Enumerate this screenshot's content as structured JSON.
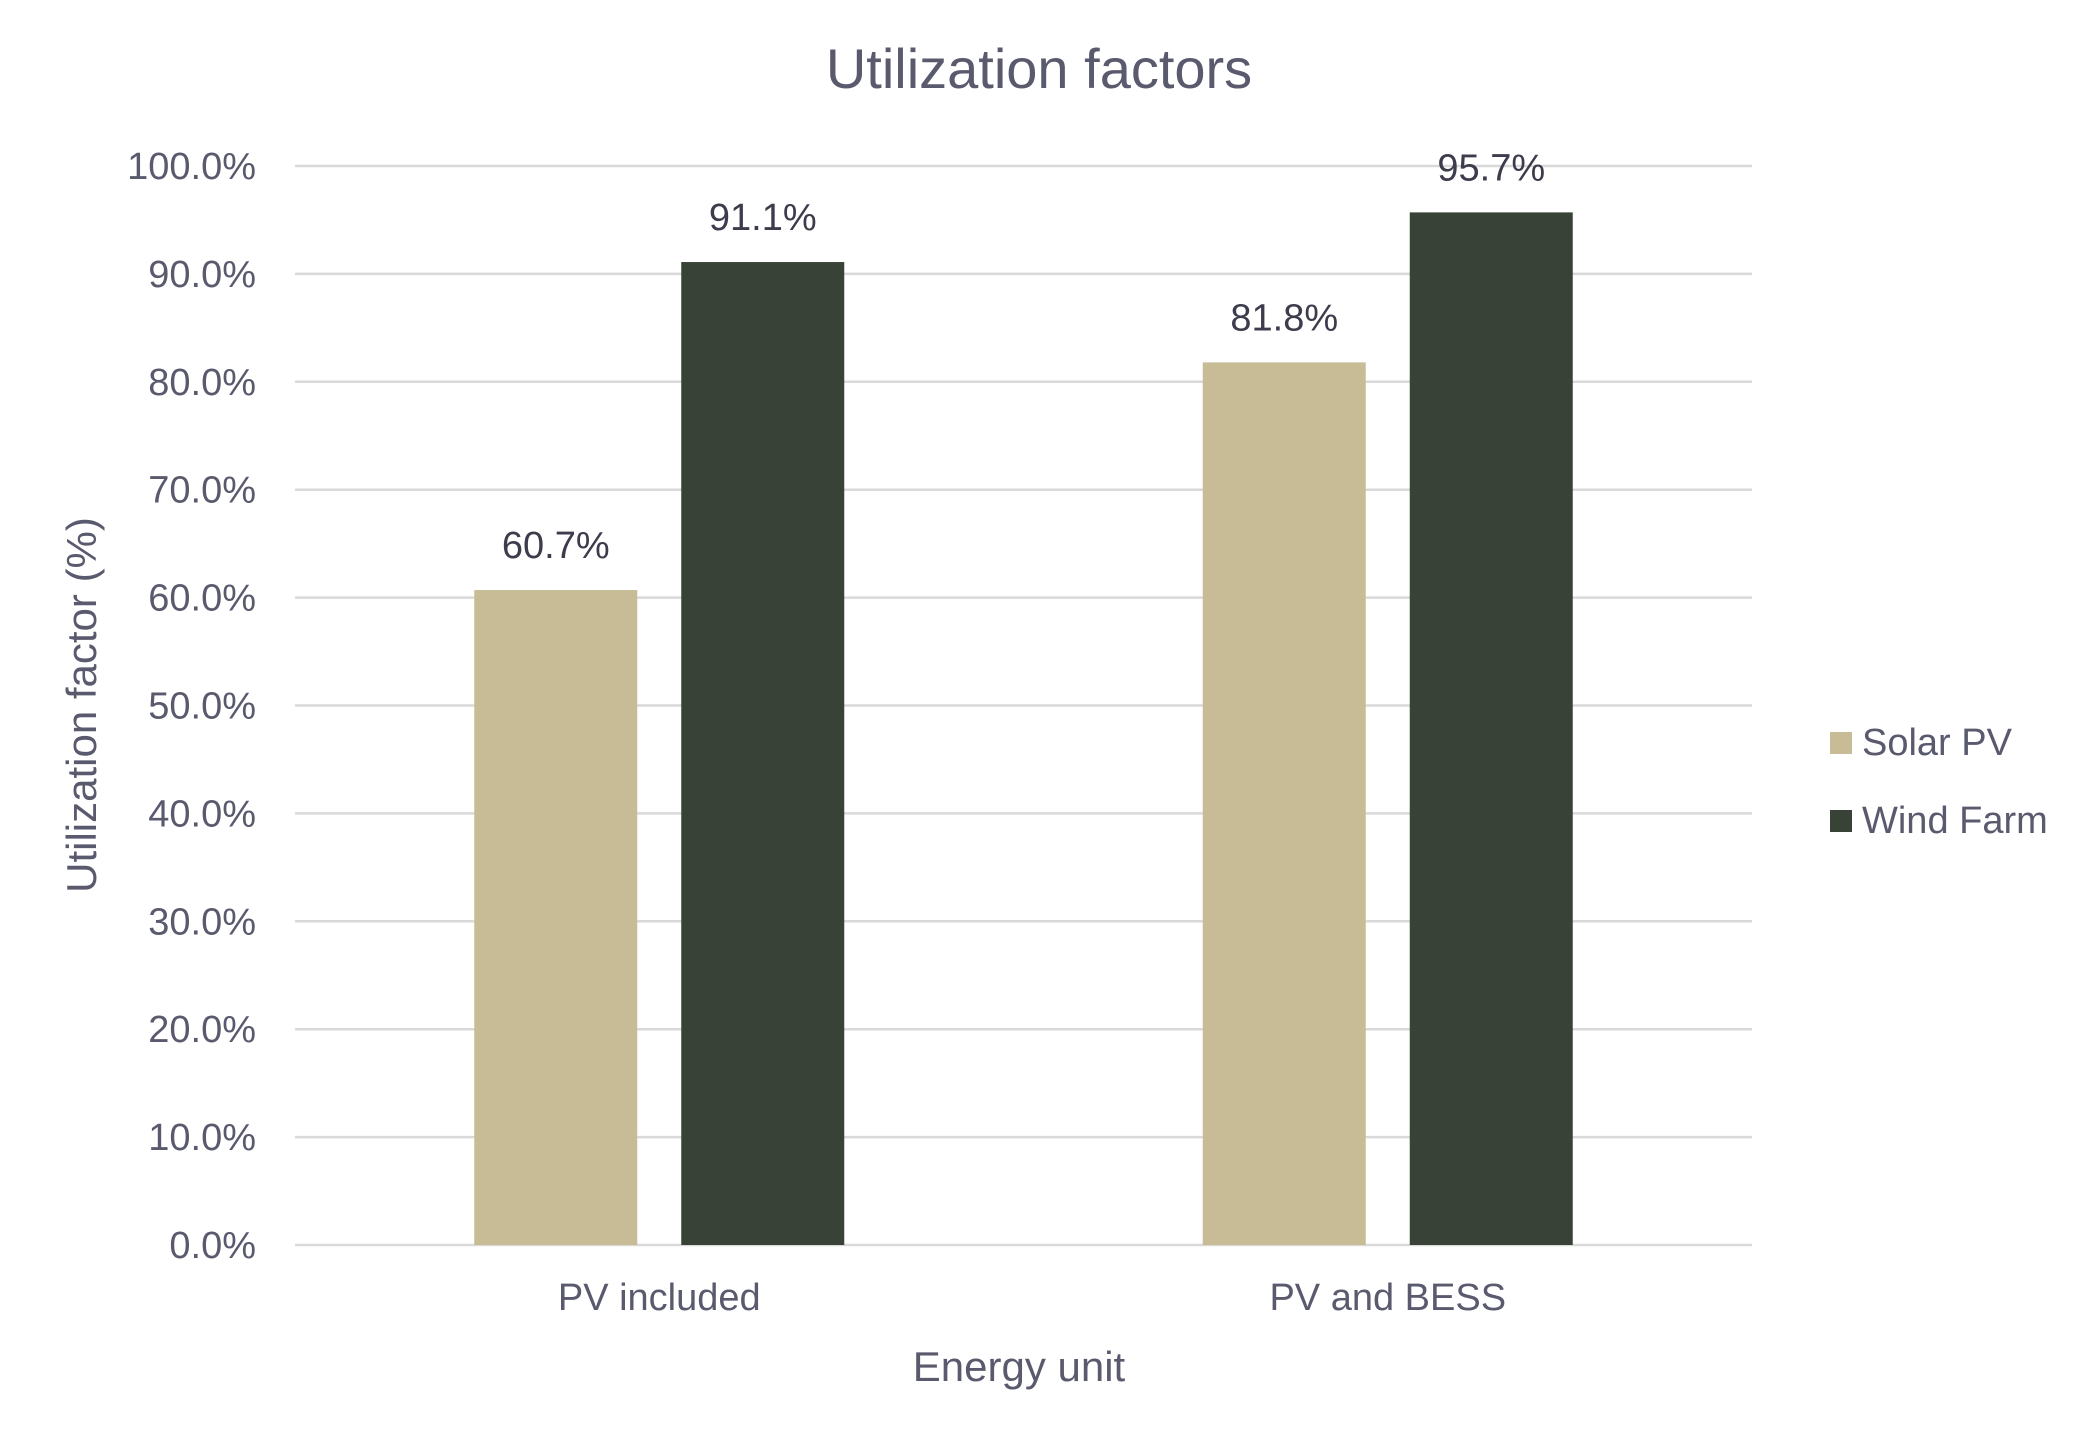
{
  "chart_data": {
    "type": "bar",
    "title": "Utilization factors",
    "xlabel": "Energy unit",
    "ylabel": "Utilization factor (%)",
    "categories": [
      "PV included",
      "PV and BESS"
    ],
    "series": [
      {
        "name": "Solar PV",
        "values": [
          60.7,
          81.8
        ],
        "labels": [
          "60.7%",
          "81.8%"
        ],
        "color": "#c8bc97"
      },
      {
        "name": "Wind Farm",
        "values": [
          91.1,
          95.7
        ],
        "labels": [
          "91.1%",
          "95.7%"
        ],
        "color": "#394236"
      }
    ],
    "ylim": [
      0,
      100
    ],
    "yticks": [
      0,
      10,
      20,
      30,
      40,
      50,
      60,
      70,
      80,
      90,
      100
    ],
    "ytick_labels": [
      "0.0%",
      "10.0%",
      "20.0%",
      "30.0%",
      "40.0%",
      "50.0%",
      "60.0%",
      "70.0%",
      "80.0%",
      "90.0%",
      "100.0%"
    ],
    "grid": true,
    "legend": "right"
  }
}
